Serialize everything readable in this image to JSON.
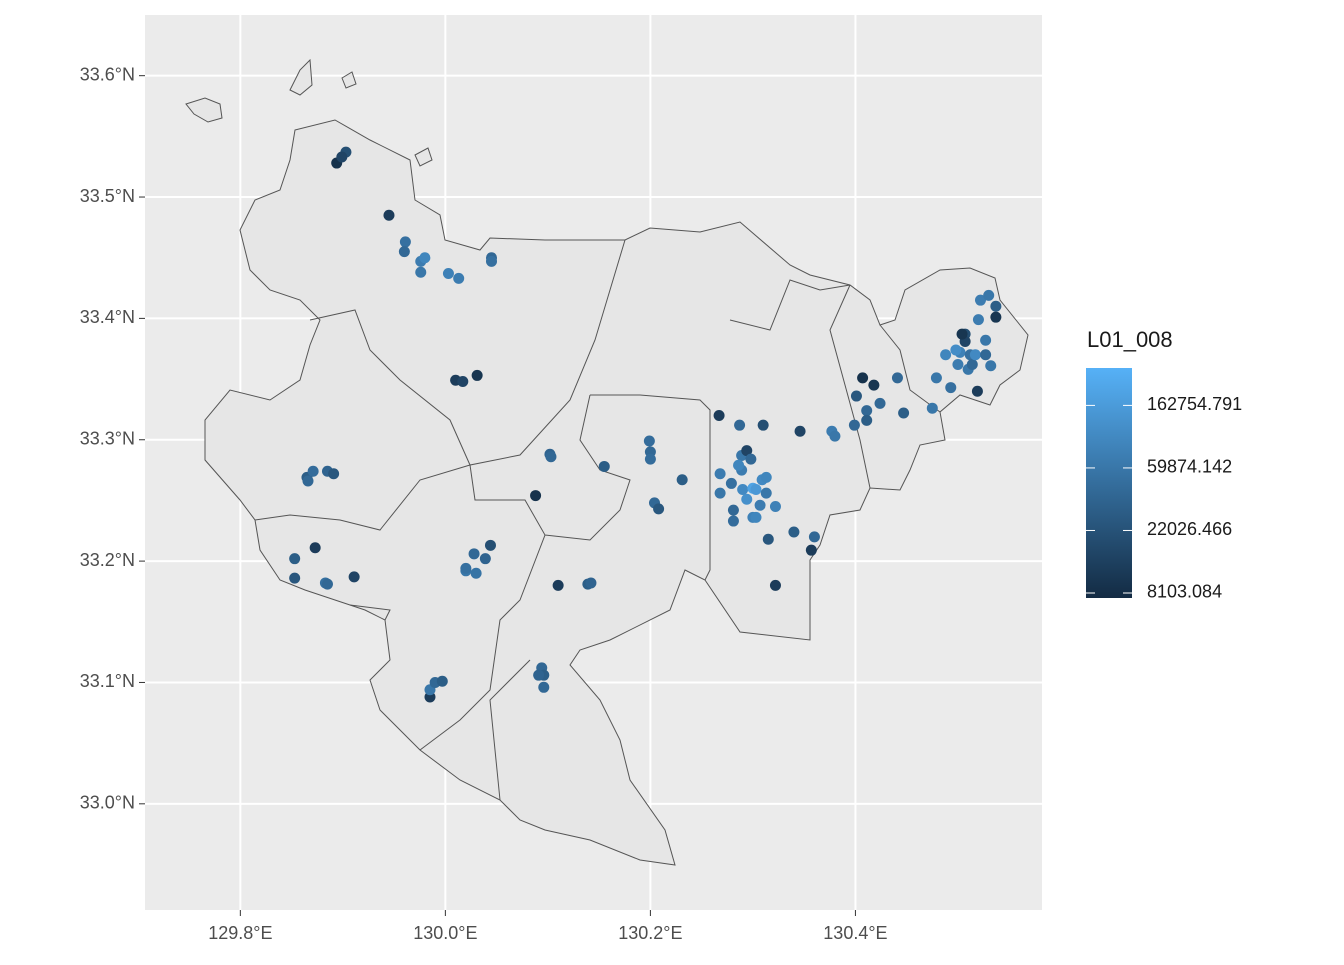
{
  "chart_data": {
    "type": "scatter",
    "xlim": [
      129.707,
      130.582
    ],
    "ylim": [
      32.9125,
      33.65
    ],
    "xticks": [
      {
        "value": 129.8,
        "label": "129.8°E"
      },
      {
        "value": 130.0,
        "label": "130.0°E"
      },
      {
        "value": 130.2,
        "label": "130.2°E"
      },
      {
        "value": 130.4,
        "label": "130.4°E"
      }
    ],
    "yticks": [
      {
        "value": 33.0,
        "label": "33.0°N"
      },
      {
        "value": 33.1,
        "label": "33.1°N"
      },
      {
        "value": 33.2,
        "label": "33.2°N"
      },
      {
        "value": 33.3,
        "label": "33.3°N"
      },
      {
        "value": 33.4,
        "label": "33.4°N"
      },
      {
        "value": 33.5,
        "label": "33.5°N"
      },
      {
        "value": 33.6,
        "label": "33.6°N"
      }
    ],
    "grid": true,
    "colorbar": {
      "title": "L01_008",
      "log": true,
      "lim": [
        7480,
        296000
      ],
      "low": "#132B43",
      "high": "#56B1F7",
      "ticks": [
        8103.084,
        22026.466,
        59874.142,
        162754.791
      ]
    },
    "x": [
      129.894,
      129.903,
      129.899,
      129.945,
      129.961,
      129.96,
      129.976,
      129.98,
      129.976,
      130.003,
      130.013,
      130.045,
      130.045,
      130.01,
      130.017,
      130.031,
      129.865,
      129.871,
      129.885,
      129.891,
      129.866,
      129.853,
      129.853,
      129.873,
      129.883,
      129.885,
      129.911,
      130.02,
      130.02,
      130.028,
      130.03,
      130.039,
      130.044,
      129.985,
      129.985,
      129.99,
      129.997,
      130.094,
      130.096,
      130.091,
      130.096,
      130.088,
      130.102,
      130.103,
      130.11,
      130.139,
      130.142,
      130.155,
      130.199,
      130.2,
      130.2,
      130.204,
      130.208,
      130.231,
      130.267,
      130.287,
      130.31,
      130.268,
      130.268,
      130.279,
      130.281,
      130.281,
      130.289,
      130.289,
      130.294,
      130.286,
      130.298,
      130.29,
      130.3,
      130.303,
      130.294,
      130.3,
      130.303,
      130.309,
      130.307,
      130.313,
      130.313,
      130.322,
      130.315,
      130.322,
      130.34,
      130.346,
      130.357,
      130.36,
      130.377,
      130.38,
      130.399,
      130.401,
      130.407,
      130.411,
      130.411,
      130.418,
      130.424,
      130.441,
      130.447,
      130.475,
      130.479,
      130.488,
      130.493,
      130.502,
      130.507,
      130.507,
      130.512,
      130.504,
      130.51,
      130.514,
      130.517,
      130.519,
      130.52,
      130.522,
      130.527,
      130.527,
      130.53,
      130.532,
      130.537,
      130.537,
      130.498,
      130.5
    ],
    "y": [
      33.528,
      33.537,
      33.533,
      33.485,
      33.463,
      33.455,
      33.447,
      33.45,
      33.438,
      33.437,
      33.433,
      33.45,
      33.447,
      33.349,
      33.348,
      33.353,
      33.269,
      33.274,
      33.274,
      33.272,
      33.266,
      33.202,
      33.186,
      33.211,
      33.182,
      33.181,
      33.187,
      33.192,
      33.194,
      33.206,
      33.19,
      33.202,
      33.213,
      33.088,
      33.094,
      33.1,
      33.101,
      33.112,
      33.106,
      33.106,
      33.096,
      33.254,
      33.288,
      33.286,
      33.18,
      33.181,
      33.182,
      33.278,
      33.299,
      33.29,
      33.284,
      33.248,
      33.243,
      33.267,
      33.32,
      33.312,
      33.312,
      33.272,
      33.256,
      33.264,
      33.242,
      33.233,
      33.287,
      33.275,
      33.291,
      33.279,
      33.284,
      33.259,
      33.26,
      33.259,
      33.251,
      33.236,
      33.236,
      33.267,
      33.246,
      33.256,
      33.269,
      33.245,
      33.218,
      33.18,
      33.224,
      33.307,
      33.209,
      33.22,
      33.307,
      33.303,
      33.312,
      33.336,
      33.351,
      33.324,
      33.316,
      33.345,
      33.33,
      33.351,
      33.322,
      33.326,
      33.351,
      33.37,
      33.343,
      33.372,
      33.387,
      33.381,
      33.37,
      33.387,
      33.358,
      33.362,
      33.37,
      33.34,
      33.399,
      33.415,
      33.382,
      33.37,
      33.419,
      33.361,
      33.41,
      33.401,
      33.374,
      33.362
    ],
    "values": [
      9000,
      20000,
      15000,
      12000,
      50000,
      40000,
      70000,
      90000,
      60000,
      80000,
      70000,
      40000,
      50000,
      12000,
      15000,
      10000,
      30000,
      45000,
      35000,
      25000,
      40000,
      30000,
      25000,
      12000,
      50000,
      40000,
      15000,
      60000,
      50000,
      40000,
      55000,
      35000,
      20000,
      12000,
      60000,
      40000,
      30000,
      40000,
      30000,
      35000,
      40000,
      9000,
      35000,
      40000,
      12000,
      30000,
      35000,
      30000,
      45000,
      40000,
      45000,
      40000,
      25000,
      30000,
      12000,
      40000,
      20000,
      70000,
      60000,
      50000,
      40000,
      45000,
      60000,
      70000,
      15000,
      90000,
      40000,
      100000,
      200000,
      150000,
      120000,
      80000,
      90000,
      100000,
      70000,
      60000,
      90000,
      80000,
      25000,
      12000,
      30000,
      15000,
      12000,
      40000,
      70000,
      60000,
      40000,
      25000,
      9000,
      40000,
      30000,
      10000,
      40000,
      40000,
      30000,
      60000,
      60000,
      90000,
      50000,
      80000,
      20000,
      15000,
      50000,
      10000,
      60000,
      40000,
      100000,
      12000,
      70000,
      70000,
      60000,
      40000,
      60000,
      60000,
      30000,
      10000,
      110000,
      70000
    ]
  }
}
